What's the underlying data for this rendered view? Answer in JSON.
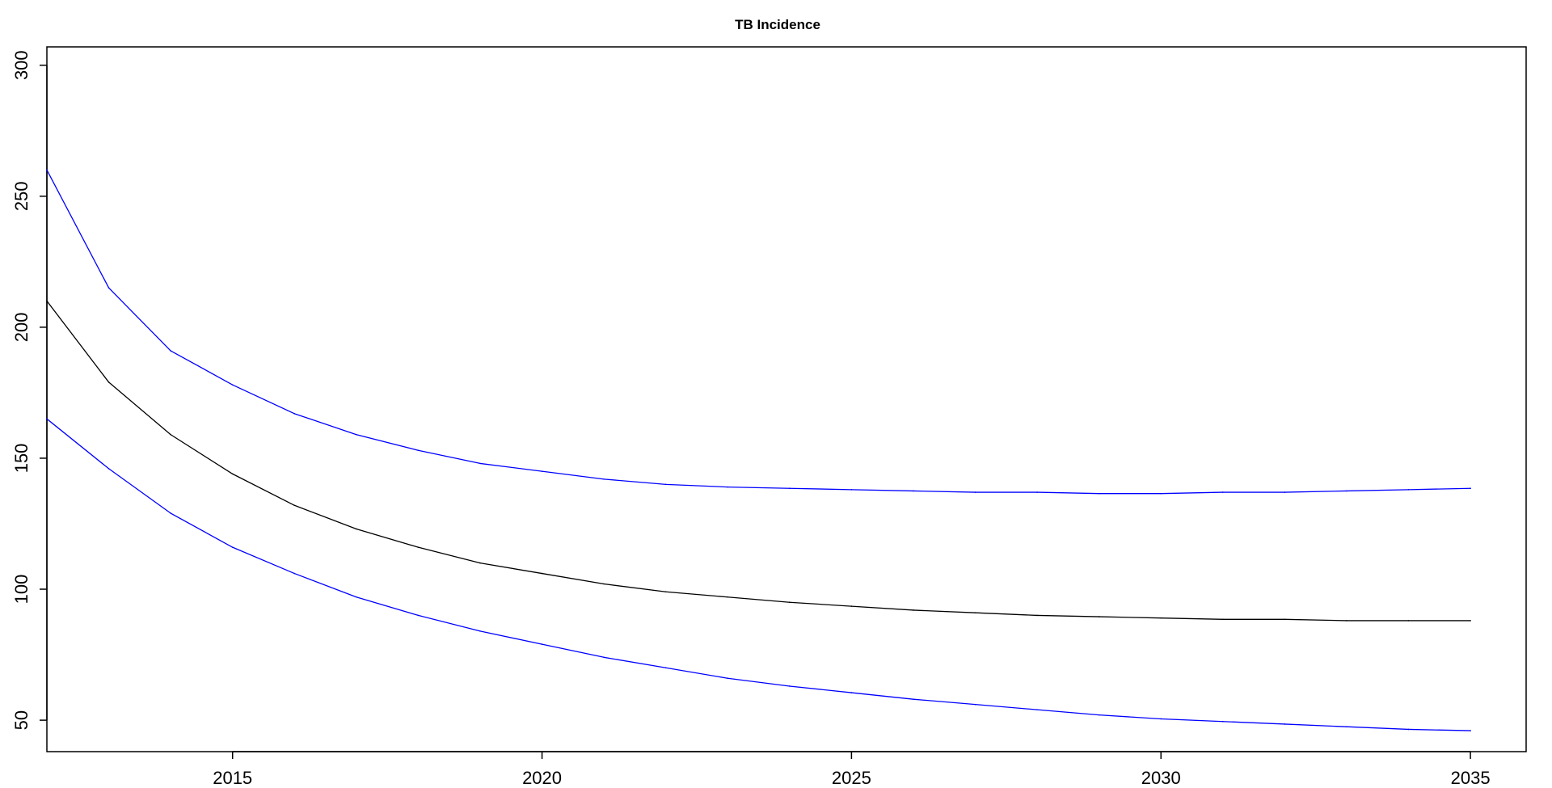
{
  "chart_data": {
    "type": "line",
    "title": "TB Incidence",
    "xlabel": "",
    "ylabel": "",
    "xlim": [
      2012,
      2035.9
    ],
    "ylim": [
      38,
      307
    ],
    "x_ticks": [
      2015,
      2020,
      2025,
      2030,
      2035
    ],
    "y_ticks": [
      50,
      100,
      150,
      200,
      250,
      300
    ],
    "grid": false,
    "x": [
      2012,
      2013,
      2014,
      2015,
      2016,
      2017,
      2018,
      2019,
      2020,
      2021,
      2022,
      2023,
      2024,
      2025,
      2026,
      2027,
      2028,
      2029,
      2030,
      2031,
      2032,
      2033,
      2034,
      2035
    ],
    "series": [
      {
        "color": "#0000ff",
        "values": [
          260,
          215,
          191,
          178,
          167,
          159,
          153,
          148,
          145,
          142,
          140,
          139,
          138.5,
          138,
          137.5,
          137,
          137,
          136.5,
          136.5,
          137,
          137,
          137.5,
          138,
          138.5
        ]
      },
      {
        "color": "#000000",
        "values": [
          210,
          179,
          159,
          144,
          132,
          123,
          116,
          110,
          106,
          102,
          99,
          97,
          95,
          93.5,
          92,
          91,
          90,
          89.5,
          89,
          88.5,
          88.5,
          88,
          88,
          88
        ]
      },
      {
        "color": "#0000ff",
        "values": [
          165,
          146,
          129,
          116,
          106,
          97,
          90,
          84,
          79,
          74,
          70,
          66,
          63,
          60.5,
          58,
          56,
          54,
          52,
          50.5,
          49.5,
          48.5,
          47.5,
          46.5,
          46
        ]
      }
    ]
  }
}
